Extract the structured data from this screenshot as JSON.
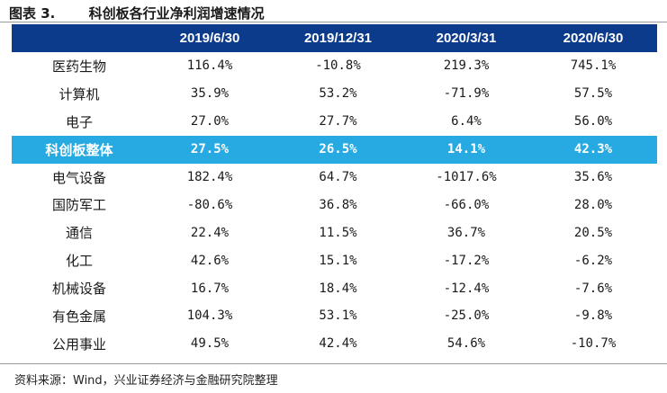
{
  "title": {
    "label": "图表 3.",
    "name": "科创板各行业净利润增速情况"
  },
  "table": {
    "headers": [
      "",
      "2019/6/30",
      "2019/12/31",
      "2020/3/31",
      "2020/6/30"
    ],
    "rows": [
      {
        "name": "医药生物",
        "values": [
          "116.4%",
          "-10.8%",
          "219.3%",
          "745.1%"
        ],
        "highlight": false
      },
      {
        "name": "计算机",
        "values": [
          "35.9%",
          "53.2%",
          "-71.9%",
          "57.5%"
        ],
        "highlight": false
      },
      {
        "name": "电子",
        "values": [
          "27.0%",
          "27.7%",
          "6.4%",
          "56.0%"
        ],
        "highlight": false
      },
      {
        "name": "科创板整体",
        "values": [
          "27.5%",
          "26.5%",
          "14.1%",
          "42.3%"
        ],
        "highlight": true
      },
      {
        "name": "电气设备",
        "values": [
          "182.4%",
          "64.7%",
          "-1017.6%",
          "35.6%"
        ],
        "highlight": false
      },
      {
        "name": "国防军工",
        "values": [
          "-80.6%",
          "36.8%",
          "-66.0%",
          "28.0%"
        ],
        "highlight": false
      },
      {
        "name": "通信",
        "values": [
          "22.4%",
          "11.5%",
          "36.7%",
          "20.5%"
        ],
        "highlight": false
      },
      {
        "name": "化工",
        "values": [
          "42.6%",
          "15.1%",
          "-17.2%",
          "-6.2%"
        ],
        "highlight": false
      },
      {
        "name": "机械设备",
        "values": [
          "16.7%",
          "18.4%",
          "-12.4%",
          "-7.6%"
        ],
        "highlight": false
      },
      {
        "name": "有色金属",
        "values": [
          "104.3%",
          "53.1%",
          "-25.0%",
          "-9.8%"
        ],
        "highlight": false
      },
      {
        "name": "公用事业",
        "values": [
          "49.5%",
          "42.4%",
          "54.6%",
          "-10.7%"
        ],
        "highlight": false
      }
    ]
  },
  "source": "资料来源：Wind，兴业证券经济与金融研究院整理",
  "colors": {
    "header_bg": "#0d3b8c",
    "highlight_bg": "#27aae1",
    "header_text": "#ffffff"
  }
}
